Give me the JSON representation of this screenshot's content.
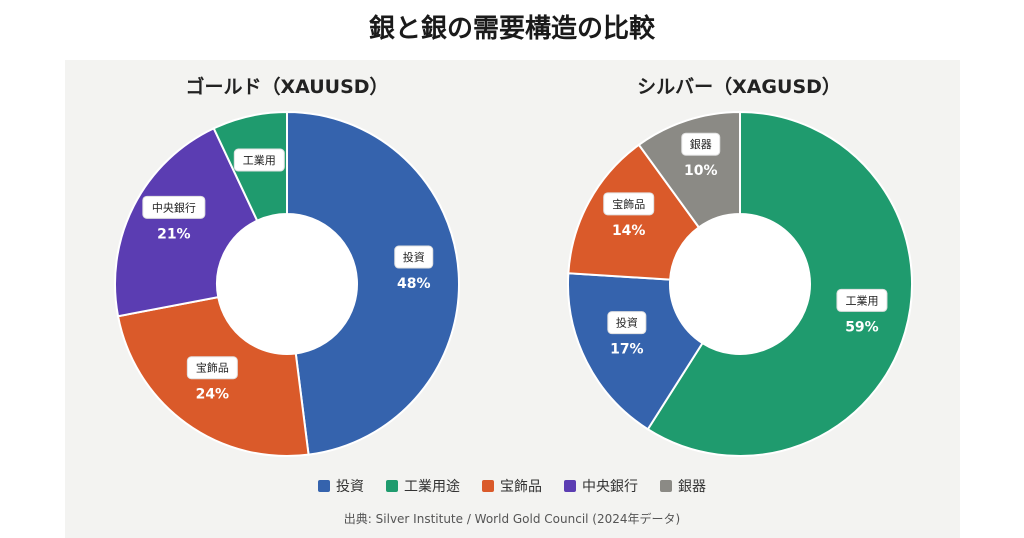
{
  "title": "銀と銀の需要構造の比較",
  "colors": {
    "investment": "#3563ad",
    "industrial": "#1f9b6e",
    "jewelry": "#da5a2a",
    "central_bank": "#5b3db2",
    "silverware": "#8b8a85"
  },
  "chart_data": [
    {
      "type": "pie",
      "title": "ゴールド（XAUUSD）",
      "slices": [
        {
          "label": "投資",
          "value": 48,
          "pct_label": "48%",
          "color_key": "investment"
        },
        {
          "label": "宝飾品",
          "value": 24,
          "pct_label": "24%",
          "color_key": "jewelry"
        },
        {
          "label": "中央銀行",
          "value": 21,
          "pct_label": "21%",
          "color_key": "central_bank"
        },
        {
          "label": "工業用",
          "value": 7,
          "pct_label": "",
          "color_key": "industrial"
        }
      ]
    },
    {
      "type": "pie",
      "title": "シルバー（XAGUSD）",
      "slices": [
        {
          "label": "工業用",
          "value": 59,
          "pct_label": "59%",
          "color_key": "industrial"
        },
        {
          "label": "投資",
          "value": 17,
          "pct_label": "17%",
          "color_key": "investment"
        },
        {
          "label": "宝飾品",
          "value": 14,
          "pct_label": "14%",
          "color_key": "jewelry"
        },
        {
          "label": "銀器",
          "value": 10,
          "pct_label": "10%",
          "color_key": "silverware"
        }
      ]
    }
  ],
  "legend": [
    {
      "label": "投資",
      "color_key": "investment"
    },
    {
      "label": "工業用途",
      "color_key": "industrial"
    },
    {
      "label": "宝飾品",
      "color_key": "jewelry"
    },
    {
      "label": "中央銀行",
      "color_key": "central_bank"
    },
    {
      "label": "銀器",
      "color_key": "silverware"
    }
  ],
  "source": "出典: Silver Institute / World Gold Council (2024年データ)"
}
